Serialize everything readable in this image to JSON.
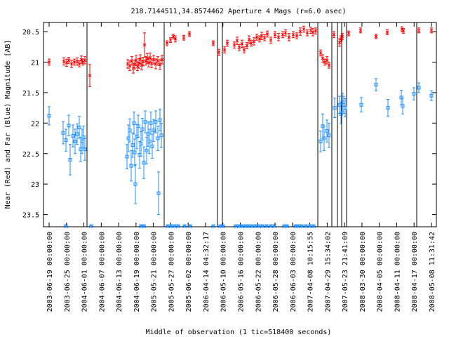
{
  "chart_data": {
    "type": "scatter",
    "title": "218.7144511,34.8574462   Aperture 4 Mags (r=6.0 asec)",
    "xlabel": "Middle of observation (1 tic=518400 seconds)",
    "ylabel": "Near (Red) and Far (Blue) Magnitude [AB]",
    "ylim": [
      23.7,
      20.35
    ],
    "y_inverted": true,
    "y_ticks": [
      20.5,
      21,
      21.5,
      22,
      22.5,
      23,
      23.5
    ],
    "x_tick_labels": [
      "2003-06-19 00:00:00",
      "2003-06-25 00:00:00",
      "2004-06-01 00:00:00",
      "2004-06-07 00:00:00",
      "2004-06-13 00:00:00",
      "2004-06-19 00:00:00",
      "2005-05-21 00:00:00",
      "2005-05-27 00:00:00",
      "2005-06-02 00:00:00",
      "2006-04-14 04:32:17",
      "2006-05-10 00:00:00",
      "2006-05-16 00:00:00",
      "2006-05-22 00:00:00",
      "2006-05-28 00:00:00",
      "2006-06-03 00:00:00",
      "2007-04-08 10:15:55",
      "2007-04-29 15:34:02",
      "2007-05-23 21:41:09",
      "2008-03-30 00:00:00",
      "2008-04-05 00:00:00",
      "2008-04-11 00:00:00",
      "2008-04-17 00:00:00",
      "2008-05-08 11:31:42"
    ],
    "segment_dividers": [
      124,
      234,
      310,
      317,
      453,
      473,
      481,
      487,
      494,
      594
    ],
    "series": [
      {
        "name": "Near (Red)",
        "color": "#ff0000",
        "marker": "x",
        "points": [
          [
            70,
            21.0,
            0.05
          ],
          [
            91,
            20.99,
            0.06
          ],
          [
            95,
            21.01,
            0.06
          ],
          [
            98,
            20.97,
            0.05
          ],
          [
            102,
            21.03,
            0.06
          ],
          [
            106,
            21.0,
            0.05
          ],
          [
            110,
            20.99,
            0.06
          ],
          [
            113,
            21.03,
            0.05
          ],
          [
            116,
            20.96,
            0.06
          ],
          [
            118,
            21.0,
            0.05
          ],
          [
            121,
            20.97,
            0.06
          ],
          [
            128,
            21.22,
            0.18
          ],
          [
            182,
            21.03,
            0.07
          ],
          [
            185,
            21.06,
            0.08
          ],
          [
            188,
            20.98,
            0.07
          ],
          [
            190,
            21.1,
            0.08
          ],
          [
            192,
            21.04,
            0.07
          ],
          [
            194,
            20.97,
            0.08
          ],
          [
            196,
            21.07,
            0.07
          ],
          [
            198,
            21.02,
            0.08
          ],
          [
            200,
            20.95,
            0.07
          ],
          [
            202,
            21.05,
            0.08
          ],
          [
            204,
            20.99,
            0.07
          ],
          [
            206,
            20.72,
            0.2
          ],
          [
            208,
            20.98,
            0.07
          ],
          [
            210,
            20.94,
            0.08
          ],
          [
            212,
            21.01,
            0.07
          ],
          [
            214,
            20.93,
            0.08
          ],
          [
            216,
            21.02,
            0.07
          ],
          [
            219,
            20.96,
            0.07
          ],
          [
            222,
            21.03,
            0.08
          ],
          [
            225,
            20.98,
            0.07
          ],
          [
            228,
            21.04,
            0.08
          ],
          [
            231,
            20.96,
            0.07
          ],
          [
            238,
            20.69,
            0.04
          ],
          [
            243,
            20.64,
            0.04
          ],
          [
            247,
            20.58,
            0.04
          ],
          [
            250,
            20.62,
            0.05
          ],
          [
            262,
            20.6,
            0.04
          ],
          [
            270,
            20.54,
            0.04
          ],
          [
            304,
            20.69,
            0.04
          ],
          [
            312,
            20.84,
            0.05
          ],
          [
            320,
            20.8,
            0.05
          ],
          [
            324,
            20.69,
            0.05
          ],
          [
            334,
            20.72,
            0.05
          ],
          [
            338,
            20.65,
            0.06
          ],
          [
            341,
            20.76,
            0.05
          ],
          [
            345,
            20.7,
            0.06
          ],
          [
            348,
            20.8,
            0.05
          ],
          [
            352,
            20.73,
            0.05
          ],
          [
            355,
            20.63,
            0.06
          ],
          [
            358,
            20.69,
            0.05
          ],
          [
            362,
            20.66,
            0.06
          ],
          [
            366,
            20.59,
            0.05
          ],
          [
            370,
            20.62,
            0.05
          ],
          [
            373,
            20.57,
            0.06
          ],
          [
            377,
            20.6,
            0.05
          ],
          [
            381,
            20.54,
            0.05
          ],
          [
            386,
            20.64,
            0.05
          ],
          [
            392,
            20.55,
            0.05
          ],
          [
            397,
            20.59,
            0.06
          ],
          [
            403,
            20.55,
            0.05
          ],
          [
            407,
            20.52,
            0.05
          ],
          [
            412,
            20.59,
            0.06
          ],
          [
            418,
            20.55,
            0.05
          ],
          [
            423,
            20.57,
            0.05
          ],
          [
            428,
            20.5,
            0.06
          ],
          [
            433,
            20.46,
            0.05
          ],
          [
            438,
            20.52,
            0.05
          ],
          [
            443,
            20.48,
            0.05
          ],
          [
            446,
            20.51,
            0.06
          ],
          [
            450,
            20.49,
            0.05
          ],
          [
            457,
            20.85,
            0.05
          ],
          [
            460,
            20.94,
            0.06
          ],
          [
            463,
            21.0,
            0.05
          ],
          [
            466,
            20.97,
            0.06
          ],
          [
            469,
            21.05,
            0.05
          ],
          [
            476,
            20.55,
            0.05
          ],
          [
            484,
            20.68,
            0.06
          ],
          [
            486,
            20.62,
            0.05
          ],
          [
            488,
            20.58,
            0.05
          ],
          [
            497,
            20.53,
            0.04
          ],
          [
            514,
            20.48,
            0.04
          ],
          [
            536,
            20.58,
            0.04
          ],
          [
            552,
            20.51,
            0.04
          ],
          [
            573,
            20.46,
            0.04
          ],
          [
            575,
            20.49,
            0.04
          ],
          [
            597,
            20.48,
            0.04
          ],
          [
            615,
            20.48,
            0.04
          ]
        ]
      },
      {
        "name": "Far (Blue)",
        "color": "#1e90ff",
        "marker": "square",
        "points": [
          [
            70,
            21.88,
            0.15
          ],
          [
            90,
            22.16,
            0.18
          ],
          [
            94,
            22.28,
            0.18
          ],
          [
            98,
            22.04,
            0.17
          ],
          [
            100,
            22.6,
            0.25
          ],
          [
            104,
            22.21,
            0.18
          ],
          [
            107,
            22.3,
            0.2
          ],
          [
            110,
            22.18,
            0.17
          ],
          [
            113,
            22.07,
            0.18
          ],
          [
            115,
            22.43,
            0.2
          ],
          [
            117,
            22.3,
            0.2
          ],
          [
            119,
            22.23,
            0.18
          ],
          [
            121,
            22.43,
            0.18
          ],
          [
            181,
            22.55,
            0.2
          ],
          [
            183,
            22.25,
            0.22
          ],
          [
            185,
            22.12,
            0.19
          ],
          [
            187,
            22.7,
            0.25
          ],
          [
            189,
            22.36,
            0.2
          ],
          [
            191,
            22.0,
            0.18
          ],
          [
            192,
            22.48,
            0.22
          ],
          [
            193,
            23.0,
            0.32
          ],
          [
            195,
            22.22,
            0.2
          ],
          [
            197,
            22.05,
            0.18
          ],
          [
            199,
            22.52,
            0.22
          ],
          [
            201,
            22.34,
            0.2
          ],
          [
            203,
            22.1,
            0.18
          ],
          [
            205,
            22.65,
            0.26
          ],
          [
            207,
            21.98,
            0.18
          ],
          [
            209,
            22.45,
            0.22
          ],
          [
            211,
            22.18,
            0.2
          ],
          [
            213,
            22.3,
            0.2
          ],
          [
            215,
            22.0,
            0.18
          ],
          [
            217,
            22.38,
            0.2
          ],
          [
            219,
            22.12,
            0.18
          ],
          [
            222,
            21.98,
            0.18
          ],
          [
            225,
            22.25,
            0.2
          ],
          [
            228,
            21.95,
            0.18
          ],
          [
            230,
            22.2,
            0.2
          ],
          [
            226,
            23.15,
            0.35
          ],
          [
            457,
            22.3,
            0.17
          ],
          [
            460,
            22.05,
            0.2
          ],
          [
            462,
            22.25,
            0.2
          ],
          [
            466,
            22.13,
            0.18
          ],
          [
            469,
            22.2,
            0.2
          ],
          [
            477,
            21.75,
            0.16
          ],
          [
            484,
            21.7,
            0.14
          ],
          [
            486,
            21.85,
            0.16
          ],
          [
            488,
            21.66,
            0.15
          ],
          [
            490,
            21.7,
            0.14
          ],
          [
            492,
            21.75,
            0.15
          ],
          [
            515,
            21.7,
            0.12
          ],
          [
            536,
            21.37,
            0.1
          ],
          [
            553,
            21.75,
            0.14
          ],
          [
            572,
            21.58,
            0.12
          ],
          [
            574,
            21.72,
            0.13
          ],
          [
            590,
            21.52,
            0.1
          ],
          [
            597,
            21.42,
            0.08
          ],
          [
            615,
            21.55,
            0.08
          ]
        ],
        "limit_markers_at": 23.7,
        "limit_markers_x": [
          94,
          130,
          201,
          205,
          239,
          244,
          249,
          254,
          263,
          271,
          304,
          314,
          318,
          336,
          341,
          345,
          350,
          354,
          359,
          364,
          369,
          374,
          380,
          386,
          391,
          405,
          409,
          421,
          425,
          430,
          436,
          442,
          447
        ]
      }
    ]
  }
}
